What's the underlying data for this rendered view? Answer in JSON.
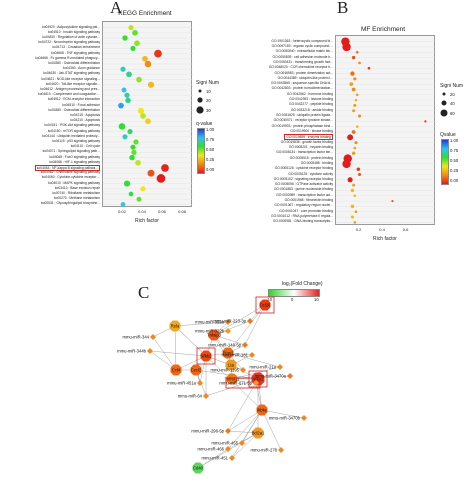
{
  "panels": {
    "a": {
      "letter": "A",
      "title": "KEGG Enrichment"
    },
    "b": {
      "letter": "B",
      "title": "MF Enrichment"
    },
    "c": {
      "letter": "C",
      "legend_title": "log₂(Fold Change)",
      "legend_ticks": [
        "-10",
        "0",
        "10"
      ]
    }
  },
  "chart_data": [
    {
      "type": "scatter",
      "title": "KEGG Enrichment",
      "xlabel": "Rich factor",
      "ylabel": "",
      "xlim": [
        0,
        0.09
      ],
      "x_ticks": [
        "0.02",
        "0.04",
        "0.06",
        "0.08"
      ],
      "size_legend": {
        "title": "Signi Num",
        "values": [
          "10",
          "20",
          "30"
        ]
      },
      "color_legend": {
        "title": "q-value",
        "ticks": [
          "1.00",
          "0.75",
          "0.50",
          "0.25",
          "0.00"
        ]
      },
      "highlighted_term": "ko04064 : NF-kappa B signaling pathway",
      "terms": [
        {
          "label": "ko04920 : Adipocytokine signaling pat...",
          "x": 0.028,
          "size": 10,
          "q": 0.45
        },
        {
          "label": "ko04510 : Insulin signaling pathway",
          "x": 0.032,
          "size": 12,
          "q": 0.55
        },
        {
          "label": "ko04810 : Regulation of actin cytoske...",
          "x": 0.022,
          "size": 11,
          "q": 0.6
        },
        {
          "label": "ko04722 : Neurotrophin signaling pathway",
          "x": 0.034,
          "size": 12,
          "q": 0.5
        },
        {
          "label": "ko04713 : Circadian entrainment",
          "x": 0.03,
          "size": 10,
          "q": 0.6
        },
        {
          "label": "ko04668 : TNF signaling pathway",
          "x": 0.055,
          "size": 22,
          "q": 0.05
        },
        {
          "label": "ko04666 : Fc gamma R-mediated phagocy...",
          "x": 0.042,
          "size": 12,
          "q": 0.3
        },
        {
          "label": "ko04380 : Osteoclast differentiation",
          "x": 0.045,
          "size": 16,
          "q": 0.2
        },
        {
          "label": "ko04360 : Axon guidance",
          "x": 0.02,
          "size": 10,
          "q": 0.75
        },
        {
          "label": "ko04630 : Jak-STAT signaling pathway",
          "x": 0.026,
          "size": 12,
          "q": 0.7
        },
        {
          "label": "ko04621 : NOD-like receptor signaling...",
          "x": 0.036,
          "size": 12,
          "q": 0.5
        },
        {
          "label": "ko04620 : Toll-like receptor signalin...",
          "x": 0.048,
          "size": 14,
          "q": 0.3
        },
        {
          "label": "ko04612 : Antigen processing and pres...",
          "x": 0.021,
          "size": 9,
          "q": 0.8
        },
        {
          "label": "ko04610 : Complement and coagulation ...",
          "x": 0.024,
          "size": 10,
          "q": 0.72
        },
        {
          "label": "ko04512 : ECM-receptor interaction",
          "x": 0.025,
          "size": 11,
          "q": 0.7
        },
        {
          "label": "ko04510 : Focal adhesion",
          "x": 0.018,
          "size": 12,
          "q": 0.85
        },
        {
          "label": "ko04380 : Osteoclast differentiation",
          "x": 0.038,
          "size": 14,
          "q": 0.4
        },
        {
          "label": "ko04215 : Apoptosis",
          "x": 0.04,
          "size": 12,
          "q": 0.45
        },
        {
          "label": "ko04210 : Apoptosis",
          "x": 0.045,
          "size": 12,
          "q": 0.35
        },
        {
          "label": "ko04151 : PI3K-Akt signaling pathway",
          "x": 0.019,
          "size": 16,
          "q": 0.6
        },
        {
          "label": "ko04150 : mTOR signaling pathway",
          "x": 0.027,
          "size": 10,
          "q": 0.65
        },
        {
          "label": "ko04144 : Ubiquitin mediated proteoly...",
          "x": 0.022,
          "size": 10,
          "q": 0.75
        },
        {
          "label": "ko04115 : p53 signaling pathway",
          "x": 0.033,
          "size": 10,
          "q": 0.55
        },
        {
          "label": "ko04110 : Cell cycle",
          "x": 0.03,
          "size": 10,
          "q": 0.6
        },
        {
          "label": "ko04071 : Sphingolipid signaling path...",
          "x": 0.031,
          "size": 10,
          "q": 0.55
        },
        {
          "label": "ko04068 : FoxO signaling pathway",
          "x": 0.029,
          "size": 11,
          "q": 0.6
        },
        {
          "label": "ko04066 : HIF-1 signaling pathway",
          "x": 0.035,
          "size": 12,
          "q": 0.45
        },
        {
          "label": "ko04064 : NF-kappa B signaling pathwa...",
          "x": 0.062,
          "size": 22,
          "q": 0.02
        },
        {
          "label": "ko04062 : Chemokine signaling pathway",
          "x": 0.048,
          "size": 18,
          "q": 0.1
        },
        {
          "label": "ko04060 : Cytokine-cytokine receptor ...",
          "x": 0.058,
          "size": 28,
          "q": 0.0
        },
        {
          "label": "ko04010 : MAPK signaling pathway",
          "x": 0.024,
          "size": 14,
          "q": 0.6
        },
        {
          "label": "ko03410 : Base excision repair",
          "x": 0.04,
          "size": 10,
          "q": 0.4
        },
        {
          "label": "ko00740 : Riboflavin metabolism",
          "x": 0.028,
          "size": 8,
          "q": 0.62
        },
        {
          "label": "ko00270 : Methane metabolism",
          "x": 0.036,
          "size": 9,
          "q": 0.55
        },
        {
          "label": "ko00531 : Glycosphingolipid biosynthe...",
          "x": 0.02,
          "size": 8,
          "q": 0.78
        }
      ]
    },
    {
      "type": "scatter",
      "title": "MF Enrichment",
      "xlabel": "Rich factor",
      "ylabel": "",
      "xlim": [
        0,
        0.85
      ],
      "x_ticks": [
        "0.2",
        "0.4",
        "0.6"
      ],
      "size_legend": {
        "title": "Signi Num",
        "values": [
          "20",
          "40",
          "60"
        ]
      },
      "color_legend": {
        "title": "Qvalue",
        "ticks": [
          "1.00",
          "0.75",
          "0.50",
          "0.25",
          "0.00"
        ]
      },
      "highlighted_term": "GO:0019899 : enzyme binding",
      "terms": [
        {
          "label": "GO:1901363 : heterocyclic compound bi...",
          "x": 0.08,
          "size": 60,
          "q": 0.0
        },
        {
          "label": "GO:0097159 : organic cyclic compound ...",
          "x": 0.09,
          "size": 60,
          "q": 0.0
        },
        {
          "label": "GO:0050840 : extracellular matrix bin...",
          "x": 0.18,
          "size": 6,
          "q": 0.15
        },
        {
          "label": "GO:0050839 : cell adhesion molecule b...",
          "x": 0.15,
          "size": 10,
          "q": 0.1
        },
        {
          "label": "GO:0050431 : transforming growth fact...",
          "x": 0.2,
          "size": 6,
          "q": 0.2
        },
        {
          "label": "GO:0048020 : CCR chemokine receptor b...",
          "x": 0.28,
          "size": 6,
          "q": 0.05
        },
        {
          "label": "GO:0046983 : protein dimerization act...",
          "x": 0.14,
          "size": 16,
          "q": 0.15
        },
        {
          "label": "GO:0044389 : ubiquitin-like protein l...",
          "x": 0.16,
          "size": 8,
          "q": 0.2
        },
        {
          "label": "GO:0043565 : sequence-specific DNA bi...",
          "x": 0.13,
          "size": 12,
          "q": 0.25
        },
        {
          "label": "GO:0042803 : protein homodimerization...",
          "x": 0.15,
          "size": 12,
          "q": 0.2
        },
        {
          "label": "GO:0042562 : hormone binding",
          "x": 0.18,
          "size": 6,
          "q": 0.25
        },
        {
          "label": "GO:0042393 : histone binding",
          "x": 0.17,
          "size": 6,
          "q": 0.3
        },
        {
          "label": "GO:0042277 : peptide binding",
          "x": 0.16,
          "size": 8,
          "q": 0.25
        },
        {
          "label": "GO:0033218 : amide binding",
          "x": 0.15,
          "size": 8,
          "q": 0.25
        },
        {
          "label": "GO:0031625 : ubiquitin protein ligase...",
          "x": 0.2,
          "size": 8,
          "q": 0.2
        },
        {
          "label": "GO:0030971 : receptor tyrosine kinase...",
          "x": 0.76,
          "size": 4,
          "q": 0.05
        },
        {
          "label": "GO:0019903 : protein phosphatase bind...",
          "x": 0.18,
          "size": 6,
          "q": 0.3
        },
        {
          "label": "GO:0019900 : kinase binding",
          "x": 0.15,
          "size": 12,
          "q": 0.15
        },
        {
          "label": "GO:0019899 : enzyme binding",
          "x": 0.12,
          "size": 30,
          "q": 0.0
        },
        {
          "label": "GO:0019838 : growth factor binding",
          "x": 0.17,
          "size": 8,
          "q": 0.2
        },
        {
          "label": "GO:0008201 : heparin binding",
          "x": 0.16,
          "size": 6,
          "q": 0.25
        },
        {
          "label": "GO:0008134 : transcription factor bin...",
          "x": 0.15,
          "size": 10,
          "q": 0.25
        },
        {
          "label": "GO:0005515 : protein binding",
          "x": 0.1,
          "size": 60,
          "q": 0.0
        },
        {
          "label": "GO:0005488 : binding",
          "x": 0.09,
          "size": 60,
          "q": 0.0
        },
        {
          "label": "GO:0005126 : cytokine receptor binding",
          "x": 0.19,
          "size": 10,
          "q": 0.05
        },
        {
          "label": "GO:0005125 : cytokine activity",
          "x": 0.2,
          "size": 8,
          "q": 0.1
        },
        {
          "label": "GO:0005102 : signaling receptor binding",
          "x": 0.12,
          "size": 22,
          "q": 0.0
        },
        {
          "label": "GO:0005096 : GTPase activator activity",
          "x": 0.15,
          "size": 8,
          "q": 0.25
        },
        {
          "label": "GO:0001883 : purine nucleoside binding",
          "x": 0.14,
          "size": 10,
          "q": 0.3
        },
        {
          "label": "GO:0000989 : transcription factor act...",
          "x": 0.16,
          "size": 6,
          "q": 0.3
        },
        {
          "label": "GO:0001968 : fibronectin binding",
          "x": 0.48,
          "size": 4,
          "q": 0.1
        },
        {
          "label": "GO:0001067 : regulatory region nuclei...",
          "x": 0.14,
          "size": 10,
          "q": 0.3
        },
        {
          "label": "GO:0001047 : core promoter binding",
          "x": 0.17,
          "size": 6,
          "q": 0.25
        },
        {
          "label": "GO:0001012 : RNA polymerase II regula...",
          "x": 0.14,
          "size": 8,
          "q": 0.3
        },
        {
          "label": "GO:0000981 : DNA-binding transcriptio...",
          "x": 0.16,
          "size": 6,
          "q": 0.25
        }
      ]
    },
    {
      "type": "network",
      "title": "",
      "highlighted_nodes": [
        "Nfkb1",
        "Ccl20",
        "mmu-miR-671-5p",
        "Nfkb2"
      ],
      "nodes": [
        {
          "id": "Rela",
          "kind": "gene",
          "fc": 2
        },
        {
          "id": "Ccl20",
          "kind": "gene",
          "fc": 9
        },
        {
          "id": "Nfkb1",
          "kind": "gene",
          "fc": 4
        },
        {
          "id": "Nfkb2",
          "kind": "gene",
          "fc": 8
        },
        {
          "id": "Ikbke",
          "kind": "gene",
          "fc": 6
        },
        {
          "id": "Tnfaip3",
          "kind": "gene",
          "fc": 7
        },
        {
          "id": "Ptgs2",
          "kind": "gene",
          "fc": 6
        },
        {
          "id": "Lta",
          "kind": "gene",
          "fc": 3
        },
        {
          "id": "Tnfrsf11",
          "kind": "gene",
          "fc": 5
        },
        {
          "id": "Cxcl2",
          "kind": "gene",
          "fc": 6
        },
        {
          "id": "Ccl4",
          "kind": "gene",
          "fc": 6
        },
        {
          "id": "Bcl2a1",
          "kind": "gene",
          "fc": 3
        },
        {
          "id": "Cd40",
          "kind": "gene",
          "fc": -3
        },
        {
          "id": "mmu-miR-322a",
          "kind": "mirna",
          "fc": 4
        },
        {
          "id": "mmu-miR-223-3p",
          "kind": "mirna",
          "fc": 5
        },
        {
          "id": "mmu-miR-344",
          "kind": "mirna",
          "fc": 4
        },
        {
          "id": "mmu-miR-322b",
          "kind": "mirna",
          "fc": 3
        },
        {
          "id": "mmu-miR-344b",
          "kind": "mirna",
          "fc": 4
        },
        {
          "id": "mmu-miR-146-5p",
          "kind": "mirna",
          "fc": 5
        },
        {
          "id": "mmu-miR-451a",
          "kind": "mirna",
          "fc": 4
        },
        {
          "id": "mmu-miR-181",
          "kind": "mirna",
          "fc": 4
        },
        {
          "id": "mmu-miR-21a",
          "kind": "mirna",
          "fc": 4
        },
        {
          "id": "mmu-miR-3470a",
          "kind": "mirna",
          "fc": 5
        },
        {
          "id": "mmu-miR-64",
          "kind": "mirna",
          "fc": 4
        },
        {
          "id": "mmu-miR-1195",
          "kind": "mirna",
          "fc": 4
        },
        {
          "id": "mmu-miR-671-5p",
          "kind": "mirna",
          "fc": 3
        },
        {
          "id": "mmu-miR-3470b",
          "kind": "mirna",
          "fc": 4
        },
        {
          "id": "mmu-miR-296-5p",
          "kind": "mirna",
          "fc": 5
        },
        {
          "id": "mmu-miR-466",
          "kind": "mirna",
          "fc": 4
        },
        {
          "id": "mmu-miR-455",
          "kind": "mirna",
          "fc": 4
        },
        {
          "id": "mmu-miR-278",
          "kind": "mirna",
          "fc": 4
        },
        {
          "id": "mmu-miR-451",
          "kind": "mirna",
          "fc": 4
        }
      ],
      "edges": [
        [
          "Rela",
          "mmu-miR-322a"
        ],
        [
          "Rela",
          "mmu-miR-344"
        ],
        [
          "Rela",
          "Ccl4"
        ],
        [
          "Rela",
          "Nfkb2"
        ],
        [
          "Rela",
          "Ikbke"
        ],
        [
          "Ccl20",
          "mmu-miR-223-3p"
        ],
        [
          "Ccl20",
          "mmu-miR-146-5p"
        ],
        [
          "Ccl20",
          "Ptgs2"
        ],
        [
          "Ccl20",
          "Tnfaip3"
        ],
        [
          "Tnfaip3",
          "mmu-miR-322a"
        ],
        [
          "Tnfaip3",
          "mmu-miR-322b"
        ],
        [
          "Tnfaip3",
          "mmu-miR-223-3p"
        ],
        [
          "Tnfaip3",
          "Ptgs2"
        ],
        [
          "Tnfaip3",
          "Lta"
        ],
        [
          "Tnfaip3",
          "Nfkb2"
        ],
        [
          "Ptgs2",
          "mmu-miR-146-5p"
        ],
        [
          "Ptgs2",
          "mmu-miR-181"
        ],
        [
          "Ptgs2",
          "Lta"
        ],
        [
          "Ptgs2",
          "mmu-miR-21a"
        ],
        [
          "Ptgs2",
          "Nfkb2"
        ],
        [
          "Nfkb2",
          "mmu-miR-344b"
        ],
        [
          "Nfkb2",
          "mmu-miR-451a"
        ],
        [
          "Nfkb2",
          "Ccl4"
        ],
        [
          "Nfkb2",
          "Lta"
        ],
        [
          "Nfkb2",
          "mmu-miR-64"
        ],
        [
          "Ccl4",
          "mmu-miR-344"
        ],
        [
          "Ccl4",
          "mmu-miR-344b"
        ],
        [
          "Ccl4",
          "Cxcl2"
        ],
        [
          "Cxcl2",
          "mmu-miR-451a"
        ],
        [
          "Cxcl2",
          "mmu-miR-64"
        ],
        [
          "Cxcl2",
          "Nfkb1"
        ],
        [
          "Lta",
          "mmu-miR-1195"
        ],
        [
          "Lta",
          "mmu-miR-181"
        ],
        [
          "Lta",
          "Nfkb1"
        ],
        [
          "Lta",
          "Tnfrsf11"
        ],
        [
          "Tnfrsf11",
          "mmu-miR-21a"
        ],
        [
          "Tnfrsf11",
          "mmu-miR-3470a"
        ],
        [
          "Tnfrsf11",
          "Nfkb1"
        ],
        [
          "Nfkb1",
          "mmu-miR-671-5p"
        ],
        [
          "Nfkb1",
          "mmu-miR-64"
        ],
        [
          "Nfkb1",
          "mmu-miR-296-5p"
        ],
        [
          "Nfkb1",
          "Ikbke"
        ],
        [
          "Nfkb1",
          "Bcl2a1"
        ],
        [
          "Ikbke",
          "mmu-miR-3470b"
        ],
        [
          "Ikbke",
          "mmu-miR-671-5p"
        ],
        [
          "Ikbke",
          "mmu-miR-296-5p"
        ],
        [
          "Ikbke",
          "mmu-miR-466"
        ],
        [
          "Ikbke",
          "mmu-miR-455"
        ],
        [
          "Ikbke",
          "mmu-miR-278"
        ],
        [
          "Ikbke",
          "mmu-miR-451"
        ],
        [
          "Bcl2a1",
          "mmu-miR-296-5p"
        ],
        [
          "Bcl2a1",
          "mmu-miR-466"
        ],
        [
          "Bcl2a1",
          "mmu-miR-451"
        ],
        [
          "Cd40",
          "mmu-miR-466"
        ],
        [
          "Cd40",
          "Bcl2a1"
        ],
        [
          "mmu-miR-1195",
          "Ptgs2"
        ],
        [
          "mmu-miR-146-5p",
          "Tnfaip3"
        ]
      ]
    }
  ]
}
